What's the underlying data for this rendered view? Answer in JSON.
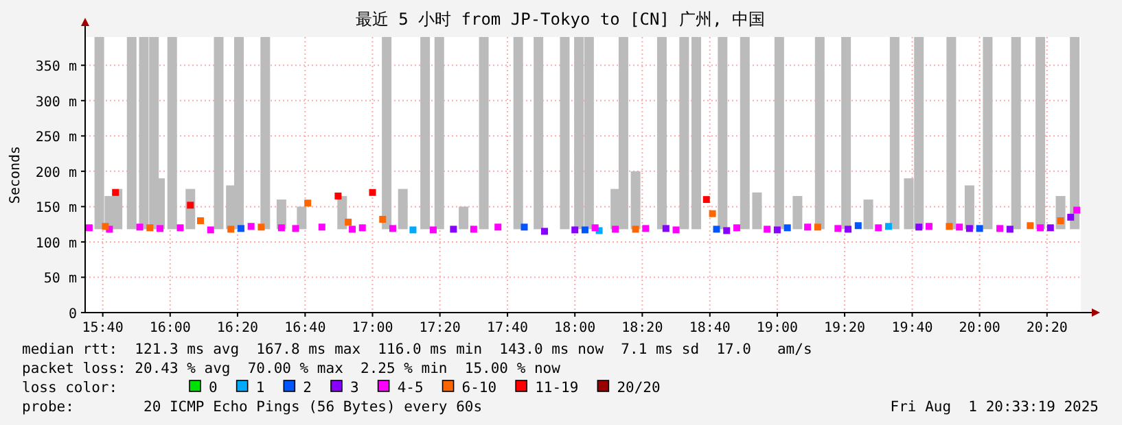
{
  "chart_data": {
    "type": "scatter",
    "title": "最近 5 小时 from JP-Tokyo to [CN] 广州, 中国",
    "ylabel": "Seconds",
    "xlim": [
      15.58,
      20.5
    ],
    "xticks": [
      {
        "value": 15.667,
        "label": "15:40"
      },
      {
        "value": 16.0,
        "label": "16:00"
      },
      {
        "value": 16.333,
        "label": "16:20"
      },
      {
        "value": 16.667,
        "label": "16:40"
      },
      {
        "value": 17.0,
        "label": "17:00"
      },
      {
        "value": 17.333,
        "label": "17:20"
      },
      {
        "value": 17.667,
        "label": "17:40"
      },
      {
        "value": 18.0,
        "label": "18:00"
      },
      {
        "value": 18.333,
        "label": "18:20"
      },
      {
        "value": 18.667,
        "label": "18:40"
      },
      {
        "value": 19.0,
        "label": "19:00"
      },
      {
        "value": 19.333,
        "label": "19:20"
      },
      {
        "value": 19.667,
        "label": "19:40"
      },
      {
        "value": 20.0,
        "label": "20:00"
      },
      {
        "value": 20.333,
        "label": "20:20"
      }
    ],
    "ylim": [
      0,
      390
    ],
    "yticks": [
      0,
      {
        "value": 50,
        "label": "50 m"
      },
      {
        "value": 100,
        "label": "100 m"
      },
      {
        "value": 150,
        "label": "150 m"
      },
      {
        "value": 200,
        "label": "200 m"
      },
      {
        "value": 250,
        "label": "250 m"
      },
      {
        "value": 300,
        "label": "300 m"
      },
      {
        "value": 350,
        "label": "350 m"
      }
    ],
    "grid": true,
    "legend": "bottom",
    "legend_title": "loss color:",
    "marker": "square",
    "series": [
      {
        "type": "bar",
        "color": "#bbbbbb",
        "x": [
          15.65,
          15.7,
          15.74,
          15.81,
          15.87,
          15.92,
          15.95,
          16.01,
          16.1,
          16.24,
          16.3,
          16.34,
          16.47,
          16.55,
          16.65,
          16.85,
          17.07,
          17.15,
          17.26,
          17.33,
          17.45,
          17.55,
          17.72,
          17.82,
          17.95,
          18.02,
          18.07,
          18.2,
          18.24,
          18.3,
          18.43,
          18.54,
          18.6,
          18.73,
          18.84,
          18.9,
          19.01,
          19.1,
          19.21,
          19.34,
          19.45,
          19.58,
          19.65,
          19.7,
          19.86,
          19.95,
          20.04,
          20.18,
          20.3,
          20.4,
          20.47
        ],
        "base": [
          118,
          118,
          118,
          118,
          118,
          118,
          118,
          118,
          118,
          118,
          118,
          118,
          118,
          118,
          118,
          118,
          118,
          118,
          118,
          118,
          118,
          118,
          118,
          118,
          118,
          118,
          118,
          118,
          118,
          118,
          118,
          118,
          118,
          118,
          118,
          118,
          118,
          118,
          118,
          118,
          118,
          118,
          118,
          118,
          118,
          118,
          118,
          118,
          118,
          118,
          118
        ],
        "values": [
          272,
          47,
          57,
          272,
          272,
          272,
          72,
          272,
          57,
          272,
          62,
          272,
          272,
          42,
          32,
          47,
          272,
          57,
          272,
          272,
          32,
          272,
          272,
          272,
          272,
          272,
          272,
          57,
          272,
          82,
          272,
          272,
          272,
          272,
          272,
          52,
          272,
          47,
          272,
          272,
          42,
          272,
          72,
          272,
          272,
          62,
          272,
          272,
          272,
          47,
          272
        ]
      },
      {
        "name": "0",
        "color": "#00e000"
      },
      {
        "name": "1",
        "color": "#00aaff",
        "x": [
          17.2,
          18.12,
          19.55
        ],
        "values": [
          117,
          116,
          122
        ]
      },
      {
        "name": "2",
        "color": "#0055ff",
        "x": [
          16.35,
          17.75,
          18.05,
          18.7,
          19.05,
          19.4,
          20.0
        ],
        "values": [
          119,
          121,
          117,
          118,
          120,
          123,
          119
        ]
      },
      {
        "name": "3",
        "color": "#8800ff",
        "x": [
          17.4,
          17.85,
          18.0,
          18.45,
          18.75,
          19.0,
          19.35,
          19.7,
          19.95,
          20.15,
          20.35,
          20.45
        ],
        "values": [
          118,
          115,
          117,
          119,
          116,
          117,
          118,
          121,
          119,
          118,
          120,
          135
        ]
      },
      {
        "name": "4-5",
        "color": "#ff00ff",
        "x": [
          15.6,
          15.7,
          15.85,
          15.95,
          16.05,
          16.2,
          16.4,
          16.55,
          16.62,
          16.75,
          16.9,
          16.95,
          17.1,
          17.3,
          17.5,
          17.62,
          18.1,
          18.2,
          18.35,
          18.5,
          18.8,
          18.95,
          19.15,
          19.3,
          19.5,
          19.75,
          19.9,
          20.1,
          20.3,
          20.48
        ],
        "values": [
          120,
          118,
          121,
          119,
          120,
          117,
          122,
          120,
          119,
          121,
          118,
          120,
          119,
          117,
          118,
          121,
          120,
          118,
          119,
          117,
          120,
          118,
          121,
          119,
          120,
          122,
          121,
          119,
          120,
          145
        ]
      },
      {
        "name": "6-10",
        "color": "#ff6600",
        "x": [
          15.68,
          15.9,
          16.15,
          16.3,
          16.45,
          16.68,
          16.88,
          17.05,
          18.3,
          18.68,
          19.2,
          19.85,
          20.25,
          20.4
        ],
        "values": [
          122,
          120,
          130,
          118,
          121,
          155,
          128,
          132,
          118,
          140,
          121,
          122,
          123,
          130
        ]
      },
      {
        "name": "11-19",
        "color": "#ff0000",
        "x": [
          15.73,
          16.1,
          16.83,
          17.0,
          18.65
        ],
        "values": [
          170,
          152,
          165,
          170,
          160
        ]
      },
      {
        "name": "20/20",
        "color": "#990000"
      }
    ],
    "annotations": [
      "median rtt:  121.3 ms avg  167.8 ms max  116.0 ms min  143.0 ms now  7.1 ms sd  17.0   am/s",
      "packet loss: 20.43 % avg  70.00 % max  2.25 % min  15.00 % now",
      "probe:        20 ICMP Echo Pings (56 Bytes) every 60s",
      "Fri Aug  1 20:33:19 2025"
    ]
  }
}
